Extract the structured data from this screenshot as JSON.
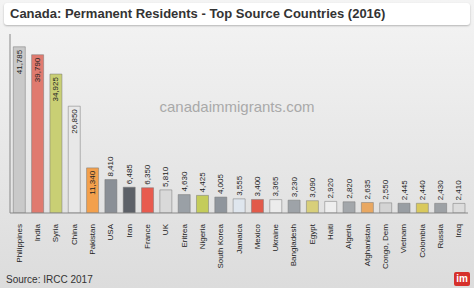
{
  "chart_data": {
    "type": "bar",
    "title": "Canada: Permanent Residents - Top Source Countries (2016)",
    "watermark": "canadaimmigrants.com",
    "source": "Source: IRCC 2017",
    "logo": "im",
    "categories": [
      "Philippines",
      "India",
      "Syria",
      "China",
      "Pakistan",
      "USA",
      "Iran",
      "France",
      "UK",
      "Eritrea",
      "Nigeria",
      "South Korea",
      "Jamaica",
      "Mexico",
      "Ukraine",
      "Bangladesh",
      "Egypt",
      "Haiti",
      "Algeria",
      "Afghanistan",
      "Congo, Dem",
      "Vietnam",
      "Colombia",
      "Russia",
      "Iraq"
    ],
    "values": [
      41785,
      39790,
      34925,
      26850,
      11340,
      8410,
      6485,
      6350,
      5810,
      4630,
      4425,
      4005,
      3555,
      3400,
      3365,
      3230,
      3090,
      2920,
      2820,
      2635,
      2550,
      2445,
      2440,
      2430,
      2410
    ],
    "value_labels": [
      "41,785",
      "39,790",
      "34,925",
      "26,850",
      "11,340",
      "8,410",
      "6,485",
      "6,350",
      "5,810",
      "4,630",
      "4,425",
      "4,005",
      "3,555",
      "3,400",
      "3,365",
      "3,230",
      "3,090",
      "2,920",
      "2,820",
      "2,635",
      "2,550",
      "2,445",
      "2,440",
      "2,430",
      "2,410"
    ],
    "colors": [
      "#c9c9c9",
      "#e07a6f",
      "#c9cf74",
      "#e8e8e8",
      "#f3a04c",
      "#8a8f96",
      "#5d6168",
      "#e85b4f",
      "#d9d9d9",
      "#9aa0a6",
      "#c4cc5a",
      "#8f959c",
      "#dfe6ee",
      "#e25a4a",
      "#ececec",
      "#9ea3a8",
      "#d8cf7a",
      "#eeeeee",
      "#a3a7ab",
      "#e9a862",
      "#d4d4d4",
      "#999ea3",
      "#d9c95c",
      "#9da1a5",
      "#dcdcdc"
    ],
    "ylim": [
      0,
      45000
    ],
    "tick_labels": "x",
    "grid": false,
    "data_labels": true
  }
}
